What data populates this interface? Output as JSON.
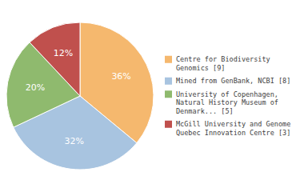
{
  "chart_data": {
    "type": "pie",
    "categories": [
      "Centre for Biodiversity\nGenomics [9]",
      "Mined from GenBank, NCBI [8]",
      "University of Copenhagen,\nNatural History Museum of\nDenmark... [5]",
      "McGill University and Genome\nQuebec Innovation Centre [3]"
    ],
    "values": [
      36,
      32,
      20,
      12
    ],
    "value_labels": [
      "36%",
      "32%",
      "20%",
      "12%"
    ],
    "colors": [
      "#F5B86E",
      "#A8C4E0",
      "#8FBA6E",
      "#C0504D"
    ],
    "data_labels": true,
    "legend": "right"
  }
}
